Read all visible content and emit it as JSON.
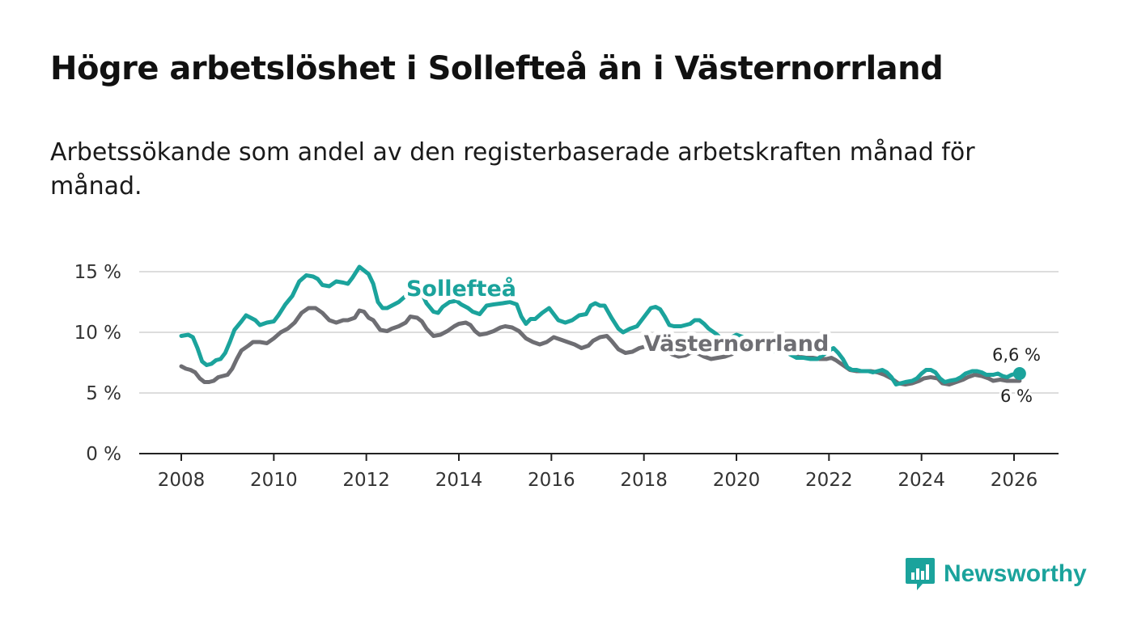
{
  "title": "Högre arbetslöshet i Sollefteå än i Västernorrland",
  "subtitle": "Arbetssökande som andel av den registerbaserade arbetskraften månad för månad.",
  "brand": {
    "name": "Newsworthy",
    "icon": "bar-chart-speech-bubble-icon"
  },
  "colors": {
    "solleftea": "#1ba39c",
    "vasternorrland": "#6e6e73",
    "grid": "#dddddd",
    "axis": "#222222"
  },
  "chart_data": {
    "type": "line",
    "title": "Högre arbetslöshet i Sollefteå än i Västernorrland",
    "xlabel": "",
    "ylabel": "",
    "xlim": [
      2007.6,
      2027.0
    ],
    "ylim": [
      0,
      15
    ],
    "x_ticks": [
      2008,
      2010,
      2012,
      2014,
      2016,
      2018,
      2020,
      2022,
      2024,
      2026
    ],
    "x_tick_labels": [
      "2008",
      "2010",
      "2012",
      "2014",
      "2016",
      "2018",
      "2020",
      "2022",
      "2024",
      "2026"
    ],
    "y_ticks": [
      0,
      5,
      10,
      15
    ],
    "y_tick_labels": [
      "0 %",
      "5 %",
      "10 %",
      "15 %"
    ],
    "series": [
      {
        "name": "Sollefteå",
        "color": "#1ba39c",
        "end_label": "6,6 %",
        "points": [
          [
            2008.0,
            9.7
          ],
          [
            2008.15,
            9.8
          ],
          [
            2008.25,
            9.6
          ],
          [
            2008.35,
            8.7
          ],
          [
            2008.45,
            7.6
          ],
          [
            2008.55,
            7.3
          ],
          [
            2008.65,
            7.4
          ],
          [
            2008.75,
            7.7
          ],
          [
            2008.85,
            7.8
          ],
          [
            2008.95,
            8.3
          ],
          [
            2009.05,
            9.2
          ],
          [
            2009.15,
            10.2
          ],
          [
            2009.3,
            10.9
          ],
          [
            2009.4,
            11.4
          ],
          [
            2009.5,
            11.2
          ],
          [
            2009.6,
            11.0
          ],
          [
            2009.7,
            10.6
          ],
          [
            2009.85,
            10.8
          ],
          [
            2010.0,
            10.9
          ],
          [
            2010.1,
            11.4
          ],
          [
            2010.25,
            12.3
          ],
          [
            2010.4,
            13.0
          ],
          [
            2010.55,
            14.2
          ],
          [
            2010.7,
            14.7
          ],
          [
            2010.85,
            14.6
          ],
          [
            2010.95,
            14.4
          ],
          [
            2011.05,
            13.9
          ],
          [
            2011.2,
            13.8
          ],
          [
            2011.35,
            14.2
          ],
          [
            2011.5,
            14.1
          ],
          [
            2011.6,
            14.0
          ],
          [
            2011.7,
            14.5
          ],
          [
            2011.85,
            15.4
          ],
          [
            2011.95,
            15.1
          ],
          [
            2012.05,
            14.8
          ],
          [
            2012.15,
            14.0
          ],
          [
            2012.25,
            12.5
          ],
          [
            2012.35,
            12.0
          ],
          [
            2012.45,
            12.0
          ],
          [
            2012.55,
            12.2
          ],
          [
            2012.7,
            12.5
          ],
          [
            2012.85,
            13.0
          ],
          [
            2012.95,
            13.9
          ],
          [
            2013.05,
            13.6
          ],
          [
            2013.2,
            13.2
          ],
          [
            2013.3,
            12.4
          ],
          [
            2013.45,
            11.7
          ],
          [
            2013.55,
            11.6
          ],
          [
            2013.65,
            12.1
          ],
          [
            2013.8,
            12.5
          ],
          [
            2013.95,
            12.6
          ],
          [
            2014.05,
            12.3
          ],
          [
            2014.2,
            12.0
          ],
          [
            2014.3,
            11.7
          ],
          [
            2014.45,
            11.5
          ],
          [
            2014.6,
            12.2
          ],
          [
            2014.75,
            12.3
          ],
          [
            2014.95,
            12.4
          ],
          [
            2015.1,
            12.5
          ],
          [
            2015.25,
            12.3
          ],
          [
            2015.35,
            11.3
          ],
          [
            2015.45,
            10.7
          ],
          [
            2015.55,
            11.1
          ],
          [
            2015.65,
            11.1
          ],
          [
            2015.8,
            11.6
          ],
          [
            2015.95,
            12.0
          ],
          [
            2016.05,
            11.5
          ],
          [
            2016.15,
            11.0
          ],
          [
            2016.3,
            10.8
          ],
          [
            2016.45,
            11.0
          ],
          [
            2016.6,
            11.4
          ],
          [
            2016.75,
            11.5
          ],
          [
            2016.85,
            12.2
          ],
          [
            2016.95,
            12.4
          ],
          [
            2017.05,
            12.2
          ],
          [
            2017.15,
            12.2
          ],
          [
            2017.3,
            11.2
          ],
          [
            2017.45,
            10.3
          ],
          [
            2017.55,
            10.0
          ],
          [
            2017.7,
            10.3
          ],
          [
            2017.85,
            10.5
          ],
          [
            2017.95,
            11.0
          ],
          [
            2018.05,
            11.5
          ],
          [
            2018.15,
            12.0
          ],
          [
            2018.25,
            12.1
          ],
          [
            2018.35,
            11.9
          ],
          [
            2018.45,
            11.3
          ],
          [
            2018.55,
            10.6
          ],
          [
            2018.65,
            10.5
          ],
          [
            2018.8,
            10.5
          ],
          [
            2018.9,
            10.6
          ],
          [
            2019.0,
            10.7
          ],
          [
            2019.1,
            11.0
          ],
          [
            2019.2,
            11.0
          ],
          [
            2019.3,
            10.7
          ],
          [
            2019.4,
            10.3
          ],
          [
            2019.55,
            9.9
          ],
          [
            2019.7,
            9.4
          ],
          [
            2019.85,
            9.5
          ],
          [
            2020.0,
            9.8
          ],
          [
            2020.15,
            9.6
          ],
          [
            2020.3,
            9.2
          ],
          [
            2020.45,
            8.9
          ],
          [
            2020.6,
            8.6
          ],
          [
            2020.75,
            8.4
          ],
          [
            2020.9,
            8.5
          ],
          [
            2021.0,
            8.7
          ],
          [
            2021.15,
            8.2
          ],
          [
            2021.3,
            7.9
          ],
          [
            2021.45,
            7.9
          ],
          [
            2021.6,
            7.8
          ],
          [
            2021.75,
            7.8
          ],
          [
            2021.9,
            8.2
          ],
          [
            2022.0,
            8.5
          ],
          [
            2022.1,
            8.7
          ],
          [
            2022.2,
            8.3
          ],
          [
            2022.3,
            7.8
          ],
          [
            2022.4,
            7.1
          ],
          [
            2022.5,
            6.9
          ],
          [
            2022.6,
            6.9
          ],
          [
            2022.7,
            6.8
          ],
          [
            2022.85,
            6.8
          ],
          [
            2022.95,
            6.7
          ],
          [
            2023.05,
            6.8
          ],
          [
            2023.15,
            6.9
          ],
          [
            2023.25,
            6.7
          ],
          [
            2023.35,
            6.3
          ],
          [
            2023.45,
            5.7
          ],
          [
            2023.55,
            5.8
          ],
          [
            2023.65,
            5.9
          ],
          [
            2023.8,
            6.0
          ],
          [
            2023.9,
            6.2
          ],
          [
            2024.0,
            6.6
          ],
          [
            2024.1,
            6.9
          ],
          [
            2024.2,
            6.9
          ],
          [
            2024.3,
            6.7
          ],
          [
            2024.4,
            6.2
          ],
          [
            2024.5,
            5.9
          ],
          [
            2024.6,
            6.0
          ],
          [
            2024.75,
            6.1
          ],
          [
            2024.85,
            6.3
          ],
          [
            2024.95,
            6.6
          ],
          [
            2025.1,
            6.8
          ],
          [
            2025.2,
            6.8
          ],
          [
            2025.3,
            6.7
          ],
          [
            2025.4,
            6.5
          ],
          [
            2025.55,
            6.5
          ],
          [
            2025.65,
            6.6
          ],
          [
            2025.75,
            6.4
          ],
          [
            2025.85,
            6.3
          ],
          [
            2025.95,
            6.5
          ],
          [
            2026.05,
            6.6
          ],
          [
            2026.12,
            6.6
          ]
        ]
      },
      {
        "name": "Västernorrland",
        "color": "#6e6e73",
        "end_label": "6 %",
        "points": [
          [
            2008.0,
            7.2
          ],
          [
            2008.1,
            7.0
          ],
          [
            2008.2,
            6.9
          ],
          [
            2008.3,
            6.7
          ],
          [
            2008.4,
            6.2
          ],
          [
            2008.5,
            5.9
          ],
          [
            2008.6,
            5.9
          ],
          [
            2008.7,
            6.0
          ],
          [
            2008.8,
            6.3
          ],
          [
            2008.9,
            6.4
          ],
          [
            2009.0,
            6.5
          ],
          [
            2009.1,
            7.0
          ],
          [
            2009.2,
            7.8
          ],
          [
            2009.3,
            8.5
          ],
          [
            2009.45,
            8.9
          ],
          [
            2009.55,
            9.2
          ],
          [
            2009.7,
            9.2
          ],
          [
            2009.85,
            9.1
          ],
          [
            2010.0,
            9.5
          ],
          [
            2010.15,
            10.0
          ],
          [
            2010.3,
            10.3
          ],
          [
            2010.45,
            10.8
          ],
          [
            2010.6,
            11.6
          ],
          [
            2010.75,
            12.0
          ],
          [
            2010.9,
            12.0
          ],
          [
            2011.05,
            11.6
          ],
          [
            2011.2,
            11.0
          ],
          [
            2011.35,
            10.8
          ],
          [
            2011.5,
            11.0
          ],
          [
            2011.6,
            11.0
          ],
          [
            2011.75,
            11.2
          ],
          [
            2011.85,
            11.8
          ],
          [
            2011.95,
            11.7
          ],
          [
            2012.05,
            11.2
          ],
          [
            2012.15,
            11.0
          ],
          [
            2012.3,
            10.2
          ],
          [
            2012.45,
            10.1
          ],
          [
            2012.55,
            10.3
          ],
          [
            2012.7,
            10.5
          ],
          [
            2012.85,
            10.8
          ],
          [
            2012.95,
            11.3
          ],
          [
            2013.1,
            11.2
          ],
          [
            2013.2,
            10.9
          ],
          [
            2013.3,
            10.3
          ],
          [
            2013.45,
            9.7
          ],
          [
            2013.6,
            9.8
          ],
          [
            2013.75,
            10.1
          ],
          [
            2013.9,
            10.5
          ],
          [
            2014.0,
            10.7
          ],
          [
            2014.15,
            10.8
          ],
          [
            2014.25,
            10.6
          ],
          [
            2014.35,
            10.1
          ],
          [
            2014.45,
            9.8
          ],
          [
            2014.6,
            9.9
          ],
          [
            2014.75,
            10.1
          ],
          [
            2014.9,
            10.4
          ],
          [
            2015.0,
            10.5
          ],
          [
            2015.15,
            10.4
          ],
          [
            2015.3,
            10.1
          ],
          [
            2015.45,
            9.5
          ],
          [
            2015.6,
            9.2
          ],
          [
            2015.75,
            9.0
          ],
          [
            2015.9,
            9.2
          ],
          [
            2016.05,
            9.6
          ],
          [
            2016.2,
            9.4
          ],
          [
            2016.35,
            9.2
          ],
          [
            2016.5,
            9.0
          ],
          [
            2016.65,
            8.7
          ],
          [
            2016.8,
            8.9
          ],
          [
            2016.9,
            9.3
          ],
          [
            2017.05,
            9.6
          ],
          [
            2017.2,
            9.7
          ],
          [
            2017.3,
            9.3
          ],
          [
            2017.45,
            8.6
          ],
          [
            2017.6,
            8.3
          ],
          [
            2017.75,
            8.4
          ],
          [
            2017.9,
            8.7
          ],
          [
            2018.0,
            8.8
          ],
          [
            2018.15,
            9.0
          ],
          [
            2018.3,
            9.0
          ],
          [
            2018.45,
            8.6
          ],
          [
            2018.6,
            8.2
          ],
          [
            2018.75,
            8.0
          ],
          [
            2018.9,
            8.1
          ],
          [
            2019.0,
            8.3
          ],
          [
            2019.15,
            8.3
          ],
          [
            2019.3,
            8.0
          ],
          [
            2019.45,
            7.8
          ],
          [
            2019.6,
            7.9
          ],
          [
            2019.75,
            8.0
          ],
          [
            2019.9,
            8.2
          ],
          [
            2020.0,
            8.5
          ],
          [
            2020.15,
            9.0
          ],
          [
            2020.3,
            9.2
          ],
          [
            2020.45,
            8.9
          ],
          [
            2020.6,
            8.6
          ],
          [
            2020.75,
            8.5
          ],
          [
            2020.9,
            8.6
          ],
          [
            2021.05,
            8.5
          ],
          [
            2021.2,
            8.2
          ],
          [
            2021.35,
            8.0
          ],
          [
            2021.5,
            7.9
          ],
          [
            2021.65,
            7.9
          ],
          [
            2021.8,
            7.8
          ],
          [
            2021.95,
            7.8
          ],
          [
            2022.05,
            7.9
          ],
          [
            2022.15,
            7.7
          ],
          [
            2022.3,
            7.3
          ],
          [
            2022.45,
            6.9
          ],
          [
            2022.6,
            6.8
          ],
          [
            2022.75,
            6.8
          ],
          [
            2022.9,
            6.8
          ],
          [
            2023.05,
            6.7
          ],
          [
            2023.2,
            6.5
          ],
          [
            2023.35,
            6.2
          ],
          [
            2023.5,
            5.8
          ],
          [
            2023.65,
            5.7
          ],
          [
            2023.8,
            5.8
          ],
          [
            2023.95,
            6.0
          ],
          [
            2024.05,
            6.2
          ],
          [
            2024.2,
            6.3
          ],
          [
            2024.35,
            6.2
          ],
          [
            2024.45,
            5.8
          ],
          [
            2024.6,
            5.7
          ],
          [
            2024.75,
            5.9
          ],
          [
            2024.9,
            6.1
          ],
          [
            2025.0,
            6.3
          ],
          [
            2025.15,
            6.5
          ],
          [
            2025.3,
            6.4
          ],
          [
            2025.45,
            6.2
          ],
          [
            2025.55,
            6.0
          ],
          [
            2025.7,
            6.1
          ],
          [
            2025.85,
            6.0
          ],
          [
            2026.0,
            6.0
          ],
          [
            2026.12,
            6.0
          ]
        ]
      }
    ]
  }
}
